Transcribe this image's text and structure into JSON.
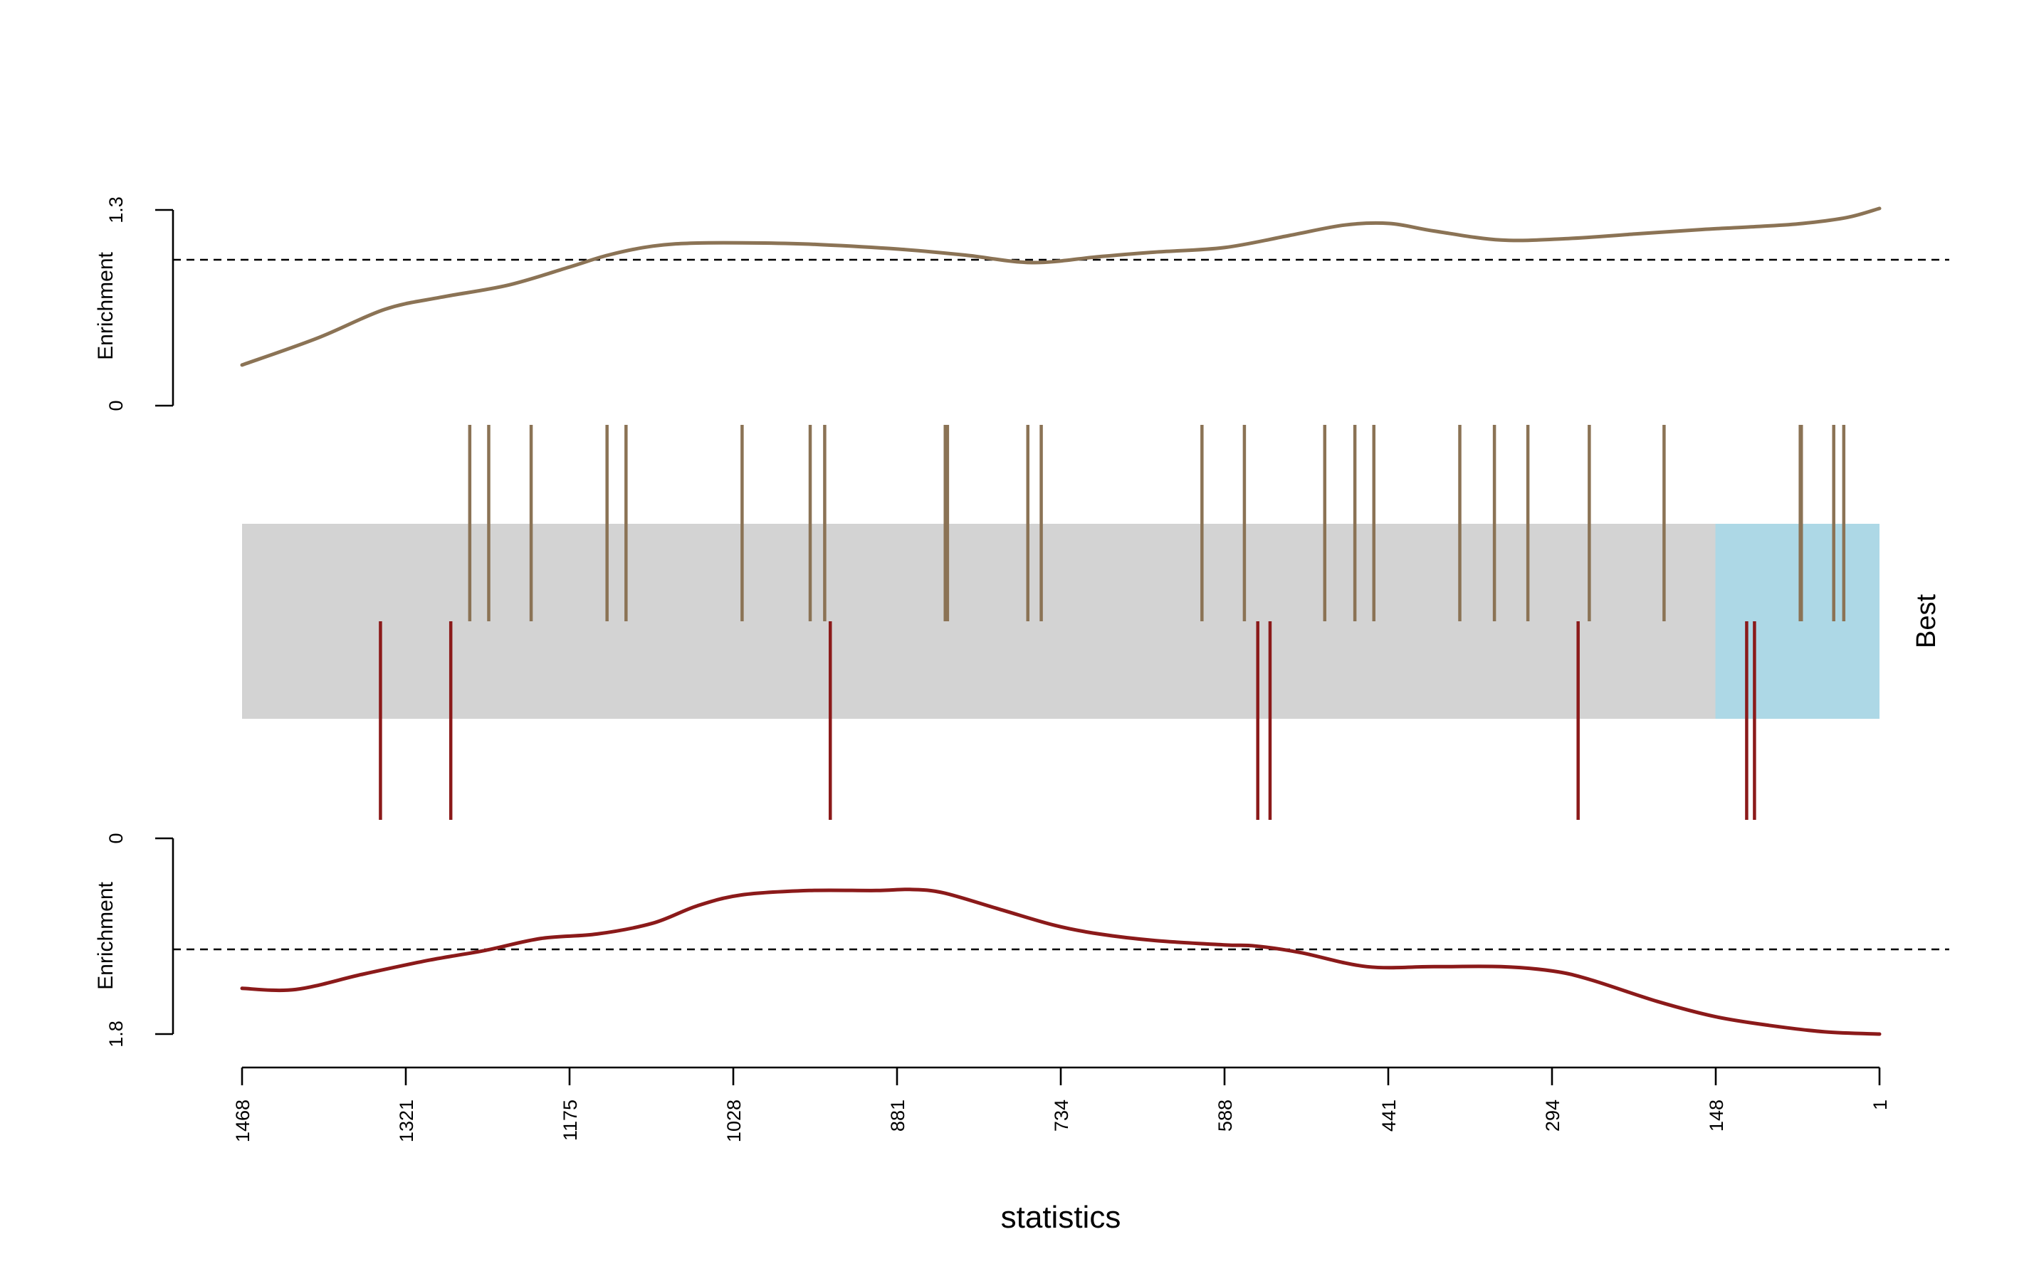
{
  "chart_data": {
    "type": "barcode",
    "xlabel": "statistics",
    "x_ticks": [
      "1468",
      "1321",
      "1175",
      "1028",
      "881",
      "734",
      "588",
      "441",
      "294",
      "148",
      "1"
    ],
    "x_range": [
      1468,
      1
    ],
    "strip_label": "Best",
    "highlight_threshold": 148,
    "colors": {
      "up": "#8B7355",
      "down": "#8B1A1A",
      "bar_background": "#D3D3D3",
      "highlight": "#ADD8E6"
    },
    "up_panel": {
      "ylabel": "Enrichment",
      "ylim": [
        0,
        1.3
      ],
      "y_ticks": [
        "0",
        "1.3"
      ],
      "reference": 0.97,
      "curve": [
        [
          1468,
          0.27
        ],
        [
          1400,
          0.45
        ],
        [
          1340,
          0.64
        ],
        [
          1290,
          0.72
        ],
        [
          1230,
          0.8
        ],
        [
          1175,
          0.92
        ],
        [
          1140,
          1.0
        ],
        [
          1100,
          1.06
        ],
        [
          1060,
          1.08
        ],
        [
          1000,
          1.08
        ],
        [
          950,
          1.07
        ],
        [
          880,
          1.04
        ],
        [
          820,
          1.0
        ],
        [
          760,
          0.95
        ],
        [
          700,
          0.99
        ],
        [
          650,
          1.02
        ],
        [
          588,
          1.05
        ],
        [
          530,
          1.13
        ],
        [
          480,
          1.2
        ],
        [
          440,
          1.21
        ],
        [
          400,
          1.16
        ],
        [
          340,
          1.1
        ],
        [
          280,
          1.11
        ],
        [
          220,
          1.14
        ],
        [
          160,
          1.17
        ],
        [
          110,
          1.19
        ],
        [
          70,
          1.21
        ],
        [
          30,
          1.25
        ],
        [
          1,
          1.31
        ]
      ],
      "ticks": [
        1264,
        1247,
        1209,
        1141,
        1124,
        1020,
        959,
        946,
        838,
        836,
        764,
        752,
        608,
        570,
        498,
        471,
        454,
        377,
        346,
        316,
        261,
        194,
        72,
        71,
        42,
        33
      ]
    },
    "down_panel": {
      "ylabel": "Enrichment",
      "ylim": [
        0,
        1.8
      ],
      "y_ticks": [
        "0",
        "1.8"
      ],
      "reference": 1.02,
      "curve": [
        [
          1468,
          1.38
        ],
        [
          1420,
          1.39
        ],
        [
          1360,
          1.25
        ],
        [
          1300,
          1.12
        ],
        [
          1250,
          1.03
        ],
        [
          1200,
          0.92
        ],
        [
          1150,
          0.88
        ],
        [
          1100,
          0.78
        ],
        [
          1060,
          0.62
        ],
        [
          1020,
          0.52
        ],
        [
          960,
          0.48
        ],
        [
          900,
          0.48
        ],
        [
          870,
          0.47
        ],
        [
          840,
          0.5
        ],
        [
          790,
          0.65
        ],
        [
          740,
          0.8
        ],
        [
          700,
          0.88
        ],
        [
          650,
          0.94
        ],
        [
          588,
          0.98
        ],
        [
          560,
          0.99
        ],
        [
          520,
          1.05
        ],
        [
          460,
          1.18
        ],
        [
          400,
          1.18
        ],
        [
          340,
          1.18
        ],
        [
          294,
          1.22
        ],
        [
          260,
          1.3
        ],
        [
          200,
          1.5
        ],
        [
          148,
          1.64
        ],
        [
          100,
          1.72
        ],
        [
          50,
          1.78
        ],
        [
          1,
          1.8
        ]
      ],
      "ticks": [
        1344,
        1281,
        941,
        558,
        547,
        271,
        120,
        113
      ]
    }
  }
}
